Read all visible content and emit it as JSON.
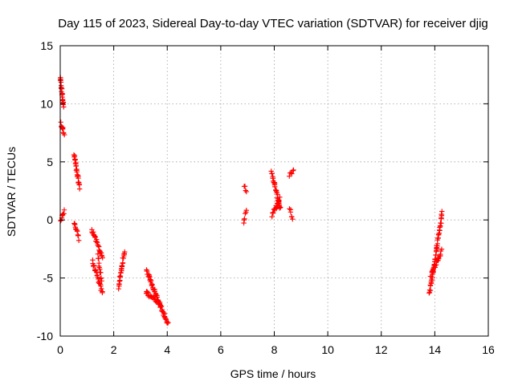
{
  "chart_data": {
    "type": "scatter",
    "title": "Day 115 of 2023, Sidereal Day-to-day VTEC variation (SDTVAR) for receiver djig",
    "xlabel": "GPS time / hours",
    "ylabel": "SDTVAR / TECUs",
    "xlim": [
      0,
      16
    ],
    "ylim": [
      -10,
      15
    ],
    "xticks": [
      "0",
      "2",
      "4",
      "6",
      "8",
      "10",
      "12",
      "14",
      "16"
    ],
    "yticks": [
      "-10",
      "-5",
      "0",
      "5",
      "10",
      "15"
    ],
    "grid": true,
    "marker": "plus",
    "color": "#ff0000",
    "segments": [
      {
        "x0": 0.0,
        "y0": 12.2,
        "x1": 0.12,
        "y1": 9.8,
        "n": 22
      },
      {
        "x0": 0.02,
        "y0": 8.3,
        "x1": 0.15,
        "y1": 7.5,
        "n": 10
      },
      {
        "x0": 0.02,
        "y0": 0.0,
        "x1": 0.15,
        "y1": 0.7,
        "n": 9
      },
      {
        "x0": 0.52,
        "y0": 5.6,
        "x1": 0.72,
        "y1": 2.8,
        "n": 26
      },
      {
        "x0": 0.52,
        "y0": -0.2,
        "x1": 0.7,
        "y1": -1.6,
        "n": 12
      },
      {
        "x0": 1.18,
        "y0": -0.8,
        "x1": 1.58,
        "y1": -3.2,
        "n": 24
      },
      {
        "x0": 1.2,
        "y0": -3.6,
        "x1": 1.58,
        "y1": -6.3,
        "n": 24
      },
      {
        "x0": 1.4,
        "y0": -3.0,
        "x1": 1.55,
        "y1": -5.3,
        "n": 12
      },
      {
        "x0": 2.18,
        "y0": -5.8,
        "x1": 2.4,
        "y1": -2.7,
        "n": 26
      },
      {
        "x0": 3.22,
        "y0": -4.3,
        "x1": 4.02,
        "y1": -9.0,
        "n": 55
      },
      {
        "x0": 3.2,
        "y0": -6.2,
        "x1": 3.75,
        "y1": -7.2,
        "n": 26
      },
      {
        "x0": 6.88,
        "y0": 2.9,
        "x1": 6.95,
        "y1": 2.6,
        "n": 4
      },
      {
        "x0": 6.86,
        "y0": -0.1,
        "x1": 6.96,
        "y1": 0.7,
        "n": 6
      },
      {
        "x0": 7.9,
        "y0": 4.1,
        "x1": 8.22,
        "y1": 1.0,
        "n": 32
      },
      {
        "x0": 7.92,
        "y0": 0.4,
        "x1": 8.2,
        "y1": 1.8,
        "n": 18
      },
      {
        "x0": 8.56,
        "y0": 3.8,
        "x1": 8.72,
        "y1": 4.3,
        "n": 6
      },
      {
        "x0": 8.58,
        "y0": 0.9,
        "x1": 8.68,
        "y1": 0.1,
        "n": 6
      },
      {
        "x0": 13.8,
        "y0": -6.3,
        "x1": 14.28,
        "y1": 0.6,
        "n": 55
      },
      {
        "x0": 13.85,
        "y0": -4.8,
        "x1": 14.26,
        "y1": -2.6,
        "n": 22
      }
    ]
  }
}
